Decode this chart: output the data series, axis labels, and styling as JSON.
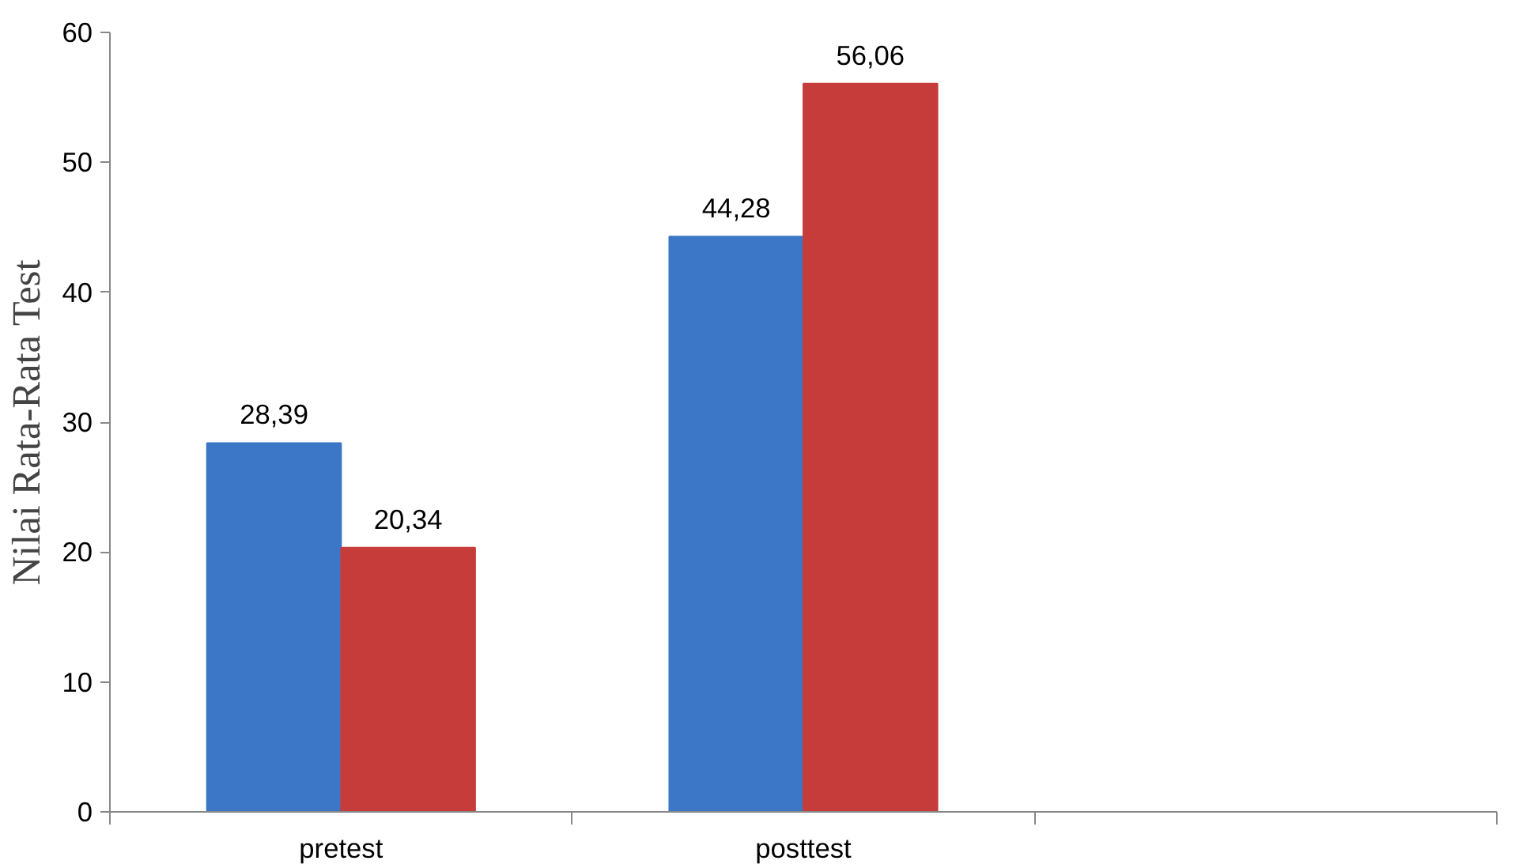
{
  "chart_data": {
    "type": "bar",
    "ylabel": "Nilai Rata-Rata Test",
    "categories": [
      "pretest",
      "posttest",
      null
    ],
    "series": [
      {
        "color": "#3b77c6",
        "values": [
          28.39,
          44.28,
          null
        ],
        "value_labels": [
          "28,39",
          "44,28",
          null
        ]
      },
      {
        "color": "#c63c3a",
        "values": [
          20.34,
          56.06,
          null
        ],
        "value_labels": [
          "20,34",
          "56,06",
          null
        ]
      }
    ],
    "ylim": [
      0,
      60
    ],
    "yticks": [
      0,
      10,
      20,
      30,
      40,
      50,
      60
    ],
    "grid": false
  }
}
